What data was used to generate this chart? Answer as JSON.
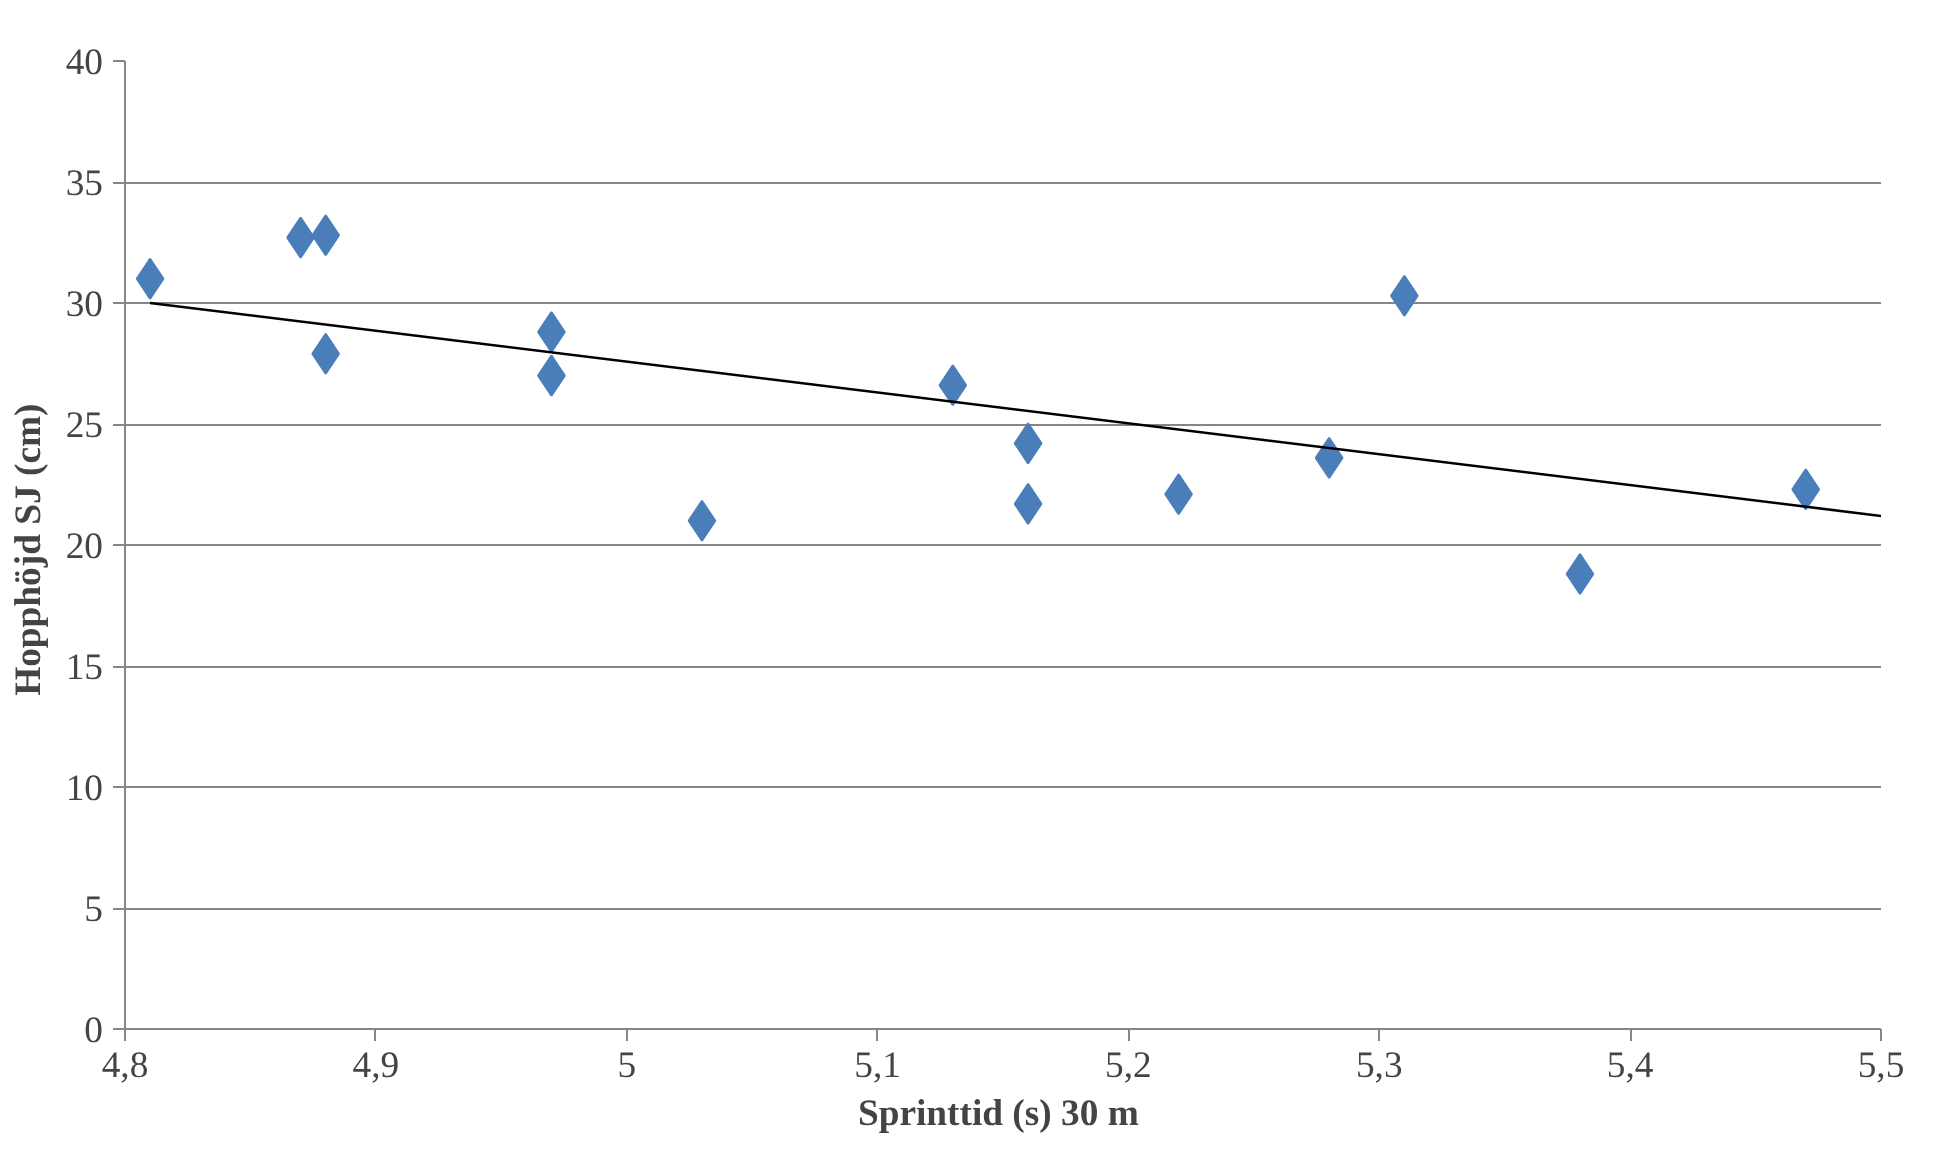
{
  "chart_data": {
    "type": "scatter",
    "xlabel": "Sprinttid  (s) 30 m",
    "ylabel": "Hopphöjd  SJ (cm)",
    "xlim": [
      4.8,
      5.5
    ],
    "ylim": [
      0,
      40
    ],
    "xticks": [
      {
        "value": 4.8,
        "label": "4,8"
      },
      {
        "value": 4.9,
        "label": "4,9"
      },
      5,
      {
        "value": 5.1,
        "label": "5,1"
      },
      {
        "value": 5.2,
        "label": "5,2"
      },
      {
        "value": 5.3,
        "label": "5,3"
      },
      {
        "value": 5.4,
        "label": "5,4"
      },
      {
        "value": 5.5,
        "label": "5,5"
      }
    ],
    "yticks": [
      0,
      5,
      10,
      15,
      20,
      25,
      30,
      35,
      40
    ],
    "grid": "y",
    "marker": "diamond",
    "series": [
      {
        "color": "#4a7ebb",
        "x": [
          4.81,
          4.87,
          4.88,
          4.88,
          4.97,
          4.97,
          5.03,
          5.13,
          5.16,
          5.16,
          5.22,
          5.28,
          5.31,
          5.38,
          5.47
        ],
        "values": [
          31.0,
          32.7,
          32.8,
          27.9,
          28.8,
          27.0,
          21.0,
          26.6,
          24.2,
          21.7,
          22.1,
          23.6,
          30.3,
          18.8,
          22.3
        ]
      },
      {
        "type": "line",
        "color": "#000000",
        "marker": "none",
        "line_style": "solid",
        "x": [
          4.81,
          5.5
        ],
        "values": [
          30.0,
          21.2
        ]
      }
    ]
  }
}
